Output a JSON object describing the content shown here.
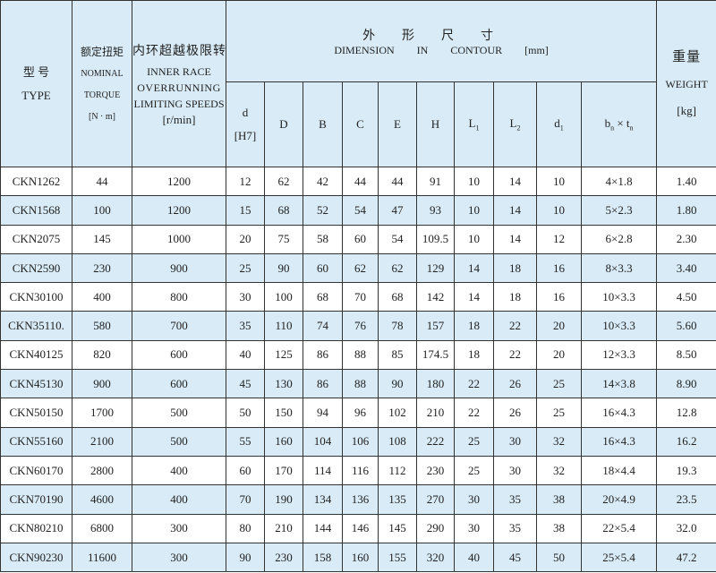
{
  "header": {
    "type_cn": "型 号",
    "type_en": "TYPE",
    "torque_cn": "额定扭矩",
    "torque_en1": "NOMINAL",
    "torque_en2": "TORQUE",
    "torque_unit": "[N · m]",
    "speed_cn": "内环超越极限转速",
    "speed_en1": "INNER RACE",
    "speed_en2": "OVERRUNNING",
    "speed_en3": "LIMITING SPEEDS",
    "speed_unit": "[r/min]",
    "dim_cn": "外形尺寸",
    "dim_en": "DIMENSION IN CONTOUR [mm]",
    "weight_cn": "重量",
    "weight_en": "WEIGHT",
    "weight_unit": "[kg]",
    "dim_cols": {
      "d": "d",
      "d_fit": "[H7]",
      "D": "D",
      "B": "B",
      "C": "C",
      "E": "E",
      "H": "H",
      "L1": "L",
      "L1_sub": "1",
      "L2": "L",
      "L2_sub": "2",
      "d1": "d",
      "d1_sub": "1",
      "bn": "b",
      "bn_sub": "n",
      "times": " × ",
      "tn": "t",
      "tn_sub": "n"
    }
  },
  "rows": [
    [
      "CKN1262",
      "44",
      "1200",
      "12",
      "62",
      "42",
      "44",
      "44",
      "91",
      "10",
      "14",
      "10",
      "4×1.8",
      "1.40"
    ],
    [
      "CKN1568",
      "100",
      "1200",
      "15",
      "68",
      "52",
      "54",
      "47",
      "93",
      "10",
      "14",
      "10",
      "5×2.3",
      "1.80"
    ],
    [
      "CKN2075",
      "145",
      "1000",
      "20",
      "75",
      "58",
      "60",
      "54",
      "109.5",
      "10",
      "14",
      "12",
      "6×2.8",
      "2.30"
    ],
    [
      "CKN2590",
      "230",
      "900",
      "25",
      "90",
      "60",
      "62",
      "62",
      "129",
      "14",
      "18",
      "16",
      "8×3.3",
      "3.40"
    ],
    [
      "CKN30100",
      "400",
      "800",
      "30",
      "100",
      "68",
      "70",
      "68",
      "142",
      "14",
      "18",
      "16",
      "10×3.3",
      "4.50"
    ],
    [
      "CKN35110.",
      "580",
      "700",
      "35",
      "110",
      "74",
      "76",
      "78",
      "157",
      "18",
      "22",
      "20",
      "10×3.3",
      "5.60"
    ],
    [
      "CKN40125",
      "820",
      "600",
      "40",
      "125",
      "86",
      "88",
      "85",
      "174.5",
      "18",
      "22",
      "20",
      "12×3.3",
      "8.50"
    ],
    [
      "CKN45130",
      "900",
      "600",
      "45",
      "130",
      "86",
      "88",
      "90",
      "180",
      "22",
      "26",
      "25",
      "14×3.8",
      "8.90"
    ],
    [
      "CKN50150",
      "1700",
      "500",
      "50",
      "150",
      "94",
      "96",
      "102",
      "210",
      "22",
      "26",
      "25",
      "16×4.3",
      "12.8"
    ],
    [
      "CKN55160",
      "2100",
      "500",
      "55",
      "160",
      "104",
      "106",
      "108",
      "222",
      "25",
      "30",
      "32",
      "16×4.3",
      "16.2"
    ],
    [
      "CKN60170",
      "2800",
      "400",
      "60",
      "170",
      "114",
      "116",
      "112",
      "230",
      "25",
      "30",
      "32",
      "18×4.4",
      "19.3"
    ],
    [
      "CKN70190",
      "4600",
      "400",
      "70",
      "190",
      "134",
      "136",
      "135",
      "270",
      "30",
      "35",
      "38",
      "20×4.9",
      "23.5"
    ],
    [
      "CKN80210",
      "6800",
      "300",
      "80",
      "210",
      "144",
      "146",
      "145",
      "290",
      "30",
      "35",
      "38",
      "22×5.4",
      "32.0"
    ],
    [
      "CKN90230",
      "11600",
      "300",
      "90",
      "230",
      "158",
      "160",
      "155",
      "320",
      "40",
      "45",
      "50",
      "25×5.4",
      "47.2"
    ]
  ],
  "colors": {
    "header_bg": "#d8ebf6",
    "stripe_bg": "#d8ebf6",
    "border": "#333333"
  }
}
